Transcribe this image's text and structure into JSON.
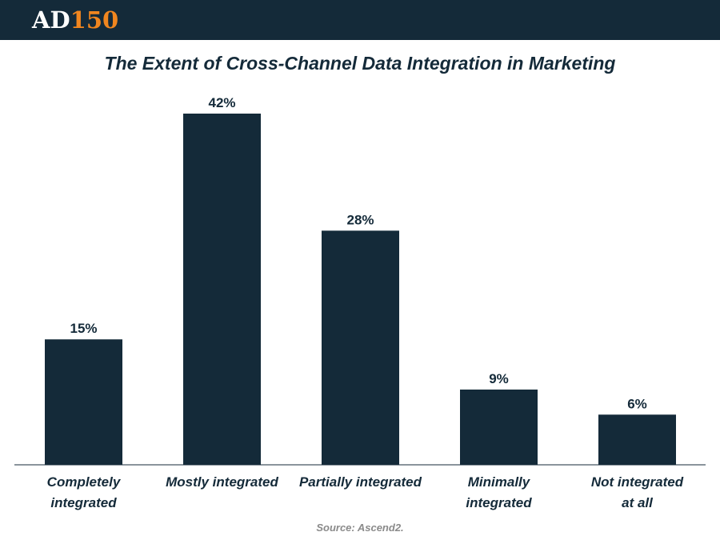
{
  "header": {
    "logo_part1": "AD",
    "logo_part2": "150"
  },
  "colors": {
    "header_bg": "#142a39",
    "bar": "#142a39",
    "logo_accent": "#f0861f",
    "source_text": "#8a8a8a"
  },
  "source": "Source: Ascend2.",
  "chart_data": {
    "type": "bar",
    "title": "The Extent of Cross-Channel Data Integration in Marketing",
    "categories": [
      [
        "Completely",
        "integrated"
      ],
      [
        "Mostly integrated"
      ],
      [
        "Partially integrated"
      ],
      [
        "Minimally",
        "integrated"
      ],
      [
        "Not integrated",
        "at all"
      ]
    ],
    "values": [
      15,
      42,
      28,
      9,
      6
    ],
    "value_labels": [
      "15%",
      "42%",
      "28%",
      "9%",
      "6%"
    ],
    "unit": "%",
    "ylim": [
      0,
      42
    ],
    "grid": false,
    "legend": "none"
  }
}
